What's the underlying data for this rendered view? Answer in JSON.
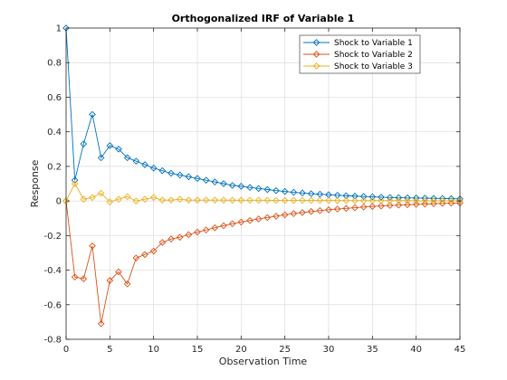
{
  "chart_data": {
    "type": "line",
    "title": "Orthogonalized IRF of Variable 1",
    "xlabel": "Observation Time",
    "ylabel": "Response",
    "xlim": [
      0,
      45
    ],
    "ylim": [
      -0.8,
      1
    ],
    "xticks": [
      0,
      5,
      10,
      15,
      20,
      25,
      30,
      35,
      40,
      45
    ],
    "yticks": [
      -0.8,
      -0.6,
      -0.4,
      -0.2,
      0,
      0.2,
      0.4,
      0.6,
      0.8,
      1
    ],
    "xtick_labels": [
      "0",
      "5",
      "10",
      "15",
      "20",
      "25",
      "30",
      "35",
      "40",
      "45"
    ],
    "ytick_labels": [
      "-0.8",
      "-0.6",
      "-0.4",
      "-0.2",
      "0",
      "0.2",
      "0.4",
      "0.6",
      "0.8",
      "1"
    ],
    "grid": true,
    "legend_position": "top-right",
    "marker": "diamond",
    "x": [
      0,
      1,
      2,
      3,
      4,
      5,
      6,
      7,
      8,
      9,
      10,
      11,
      12,
      13,
      14,
      15,
      16,
      17,
      18,
      19,
      20,
      21,
      22,
      23,
      24,
      25,
      26,
      27,
      28,
      29,
      30,
      31,
      32,
      33,
      34,
      35,
      36,
      37,
      38,
      39,
      40,
      41,
      42,
      43,
      44,
      45
    ],
    "series": [
      {
        "name": "Shock to Variable 1",
        "color": "#0072BD",
        "values": [
          1.0,
          0.12,
          0.33,
          0.5,
          0.25,
          0.32,
          0.3,
          0.25,
          0.23,
          0.21,
          0.19,
          0.175,
          0.16,
          0.15,
          0.14,
          0.13,
          0.12,
          0.11,
          0.1,
          0.09,
          0.085,
          0.078,
          0.072,
          0.066,
          0.06,
          0.055,
          0.05,
          0.046,
          0.042,
          0.039,
          0.036,
          0.033,
          0.03,
          0.028,
          0.026,
          0.024,
          0.022,
          0.02,
          0.019,
          0.018,
          0.017,
          0.016,
          0.015,
          0.014,
          0.013,
          0.012
        ]
      },
      {
        "name": "Shock to Variable 2",
        "color": "#D95319",
        "values": [
          0.0,
          -0.44,
          -0.45,
          -0.26,
          -0.71,
          -0.46,
          -0.41,
          -0.48,
          -0.33,
          -0.31,
          -0.29,
          -0.24,
          -0.22,
          -0.21,
          -0.195,
          -0.18,
          -0.168,
          -0.155,
          -0.143,
          -0.132,
          -0.122,
          -0.113,
          -0.104,
          -0.096,
          -0.088,
          -0.08,
          -0.073,
          -0.067,
          -0.061,
          -0.056,
          -0.051,
          -0.047,
          -0.043,
          -0.039,
          -0.035,
          -0.032,
          -0.029,
          -0.026,
          -0.024,
          -0.022,
          -0.02,
          -0.018,
          -0.016,
          -0.014,
          -0.013,
          -0.012
        ]
      },
      {
        "name": "Shock to Variable 3",
        "color": "#EDB120",
        "values": [
          0.0,
          0.1,
          0.01,
          0.02,
          0.045,
          -0.005,
          0.01,
          0.025,
          0.0,
          0.01,
          0.02,
          0.005,
          0.005,
          0.01,
          0.005,
          0.005,
          0.005,
          0.005,
          0.005,
          0.004,
          0.004,
          0.004,
          0.004,
          0.004,
          0.003,
          0.003,
          0.003,
          0.003,
          0.003,
          0.003,
          0.003,
          0.002,
          0.002,
          0.002,
          0.002,
          0.002,
          0.002,
          0.002,
          0.002,
          0.002,
          0.001,
          0.001,
          0.001,
          0.001,
          0.001,
          0.001
        ]
      }
    ]
  }
}
